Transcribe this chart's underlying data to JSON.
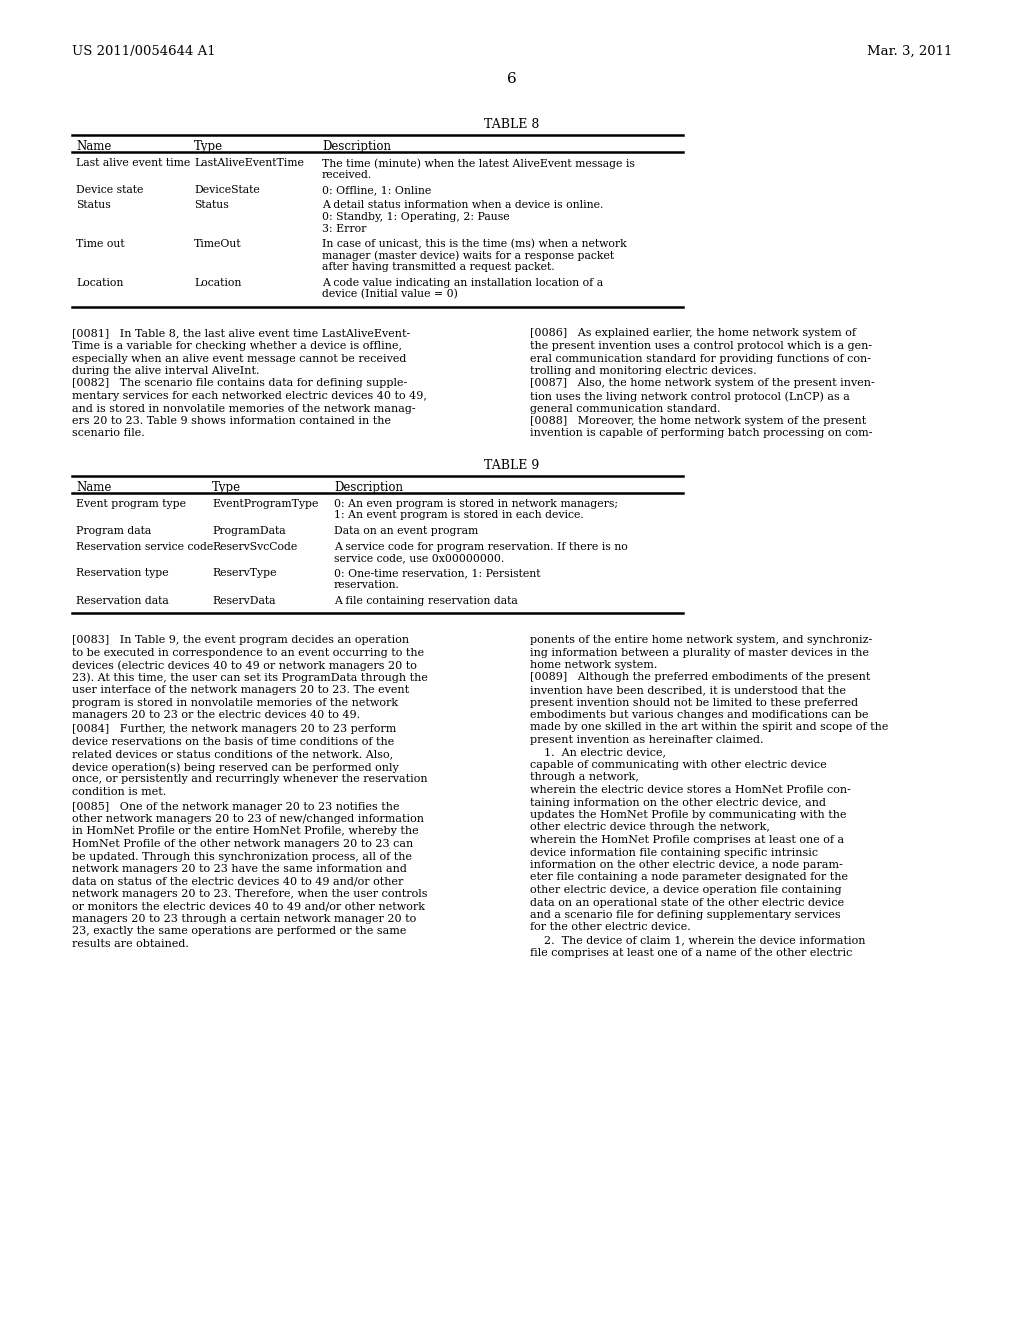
{
  "bg_color": "#ffffff",
  "header_left": "US 2011/0054644 A1",
  "header_right": "Mar. 3, 2011",
  "page_number": "6",
  "table8_title": "TABLE 8",
  "table9_title": "TABLE 9",
  "table8_rows": [
    [
      "Last alive event time",
      "LastAliveEventTime",
      "The time (minute) when the latest AliveEvent message is\nreceived."
    ],
    [
      "Device state",
      "DeviceState",
      "0: Offline, 1: Online"
    ],
    [
      "Status",
      "Status",
      "A detail status information when a device is online.\n0: Standby, 1: Operating, 2: Pause\n3: Error"
    ],
    [
      "Time out",
      "TimeOut",
      "In case of unicast, this is the time (ms) when a network\nmanager (master device) waits for a response packet\nafter having transmitted a request packet."
    ],
    [
      "Location",
      "Location",
      "A code value indicating an installation location of a\ndevice (Initial value = 0)"
    ]
  ],
  "table9_rows": [
    [
      "Event program type",
      "EventProgramType",
      "0: An even program is stored in network managers;\n1: An event program is stored in each device."
    ],
    [
      "Program data",
      "ProgramData",
      "Data on an event program"
    ],
    [
      "Reservation service code",
      "ReservSvcCode",
      "A service code for program reservation. If there is no\nservice code, use 0x00000000."
    ],
    [
      "Reservation type",
      "ReservType",
      "0: One-time reservation, 1: Persistent\nreservation."
    ],
    [
      "Reservation data",
      "ReservData",
      "A file containing reservation data"
    ]
  ],
  "left_col_paras_1": [
    [
      "[0081]",
      "   In Table 8, the last alive event time LastAliveEvent-",
      "Time is a variable for checking whether a device is offline,",
      "especially when an alive event message cannot be received",
      "during the alive interval AliveInt."
    ],
    [
      "[0082]",
      "   The scenario file contains data for defining supple-",
      "mentary services for each networked electric devices 40 to 49,",
      "and is stored in nonvolatile memories of the network manag-",
      "ers 20 to 23. Table 9 shows information contained in the",
      "scenario file."
    ]
  ],
  "right_col_paras_1": [
    [
      "[0086]",
      "   As explained earlier, the home network system of",
      "the present invention uses a control protocol which is a gen-",
      "eral communication standard for providing functions of con-",
      "trolling and monitoring electric devices."
    ],
    [
      "[0087]",
      "   Also, the home network system of the present inven-",
      "tion uses the living network control protocol (LnCP) as a",
      "general communication standard."
    ],
    [
      "[0088]",
      "   Moreover, the home network system of the present",
      "invention is capable of performing batch processing on com-"
    ]
  ],
  "left_col_paras_2": [
    [
      "[0083]",
      "   In Table 9, the event program decides an operation",
      "to be executed in correspondence to an event occurring to the",
      "devices (electric devices 40 to 49 or network managers 20 to",
      "23). At this time, the user can set its ProgramData through the",
      "user interface of the network managers 20 to 23. The event",
      "program is stored in nonvolatile memories of the network",
      "managers 20 to 23 or the electric devices 40 to 49."
    ],
    [
      "[0084]",
      "   Further, the network managers 20 to 23 perform",
      "device reservations on the basis of time conditions of the",
      "related devices or status conditions of the network. Also,",
      "device operation(s) being reserved can be performed only",
      "once, or persistently and recurringly whenever the reservation",
      "condition is met."
    ],
    [
      "[0085]",
      "   One of the network manager 20 to 23 notifies the",
      "other network managers 20 to 23 of new/changed information",
      "in HomNet Profile or the entire HomNet Profile, whereby the",
      "HomNet Profile of the other network managers 20 to 23 can",
      "be updated. Through this synchronization process, all of the",
      "network managers 20 to 23 have the same information and",
      "data on status of the electric devices 40 to 49 and/or other",
      "network managers 20 to 23. Therefore, when the user controls",
      "or monitors the electric devices 40 to 49 and/or other network",
      "managers 20 to 23 through a certain network manager 20 to",
      "23, exactly the same operations are performed or the same",
      "results are obtained."
    ]
  ],
  "right_col_paras_2": [
    [
      "",
      "ponents of the entire home network system, and synchroniz-",
      "ing information between a plurality of master devices in the",
      "home network system."
    ],
    [
      "[0089]",
      "   Although the preferred embodiments of the present",
      "invention have been described, it is understood that the",
      "present invention should not be limited to these preferred",
      "embodiments but various changes and modifications can be",
      "made by one skilled in the art within the spirit and scope of the",
      "present invention as hereinafter claimed."
    ],
    [
      "    1.",
      "  An electric device,"
    ],
    [
      "",
      "capable of communicating with other electric device",
      "through a network,"
    ],
    [
      "",
      "wherein the electric device stores a HomNet Profile con-",
      "taining information on the other electric device, and",
      "updates the HomNet Profile by communicating with the",
      "other electric device through the network,"
    ],
    [
      "",
      "wherein the HomNet Profile comprises at least one of a",
      "device information file containing specific intrinsic",
      "information on the other electric device, a node param-",
      "eter file containing a node parameter designated for the",
      "other electric device, a device operation file containing",
      "data on an operational state of the other electric device",
      "and a scenario file for defining supplementary services",
      "for the other electric device."
    ],
    [
      "    2.",
      "  The device of claim 1, wherein the device information",
      "file comprises at least one of a name of the other electric"
    ]
  ]
}
